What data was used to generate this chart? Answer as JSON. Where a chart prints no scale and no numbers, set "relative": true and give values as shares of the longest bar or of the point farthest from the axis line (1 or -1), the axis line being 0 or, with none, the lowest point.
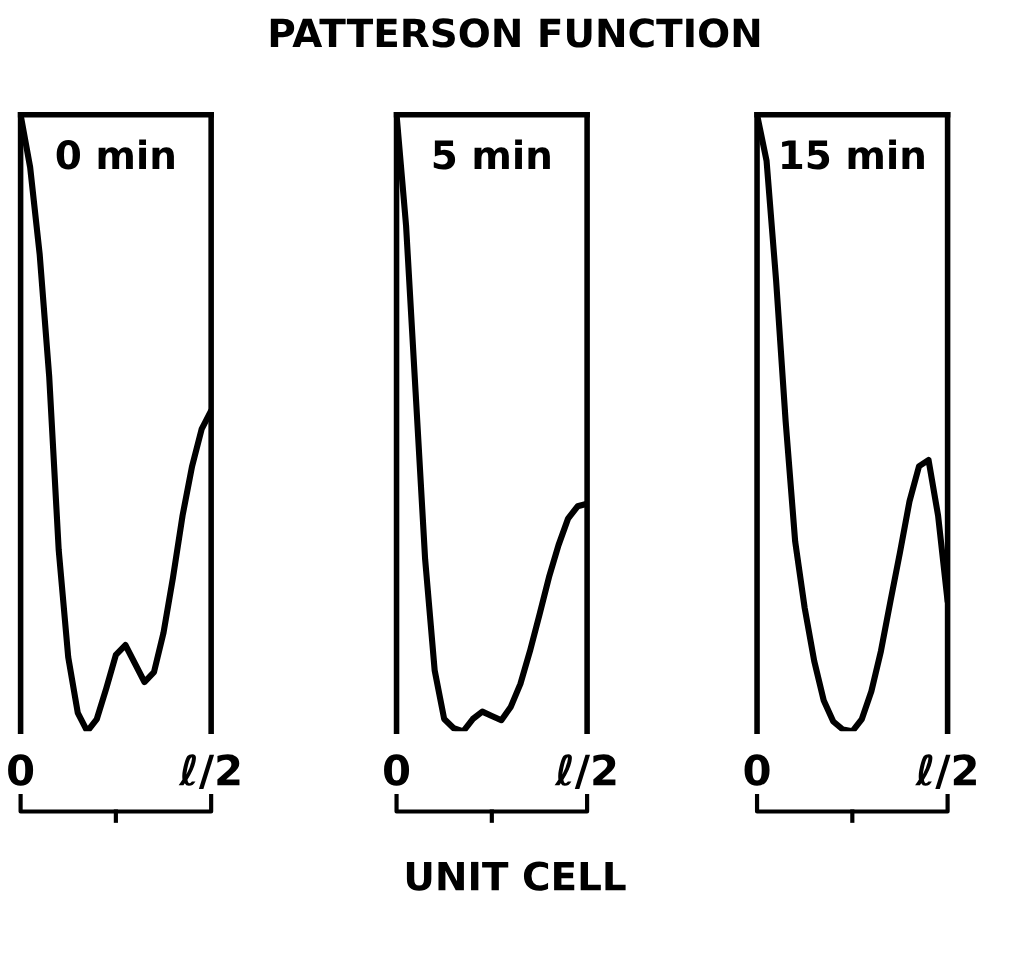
{
  "chart_data": [
    {
      "type": "line",
      "relative": true,
      "title": "0 min",
      "annotations": [
        "PATTERSON FUNCTION"
      ],
      "categories": [
        "0",
        null,
        null,
        null,
        null,
        null,
        null,
        null,
        null,
        null,
        null,
        null,
        null,
        null,
        null,
        null,
        null,
        null,
        null,
        null,
        "ℓ/2"
      ],
      "tick_labels": "x",
      "series": [
        {
          "color": "#000000",
          "values": [
            1,
            0.915,
            0.774,
            0.576,
            0.294,
            0.12,
            0.03,
            0,
            0.02,
            0.07,
            0.124,
            0.14,
            0.11,
            0.08,
            0.096,
            0.16,
            0.25,
            0.35,
            0.43,
            0.49,
            0.52
          ]
        }
      ]
    },
    {
      "type": "line",
      "relative": true,
      "title": "5 min",
      "xlabel": "UNIT CELL",
      "categories": [
        "0",
        null,
        null,
        null,
        null,
        null,
        null,
        null,
        null,
        null,
        null,
        null,
        null,
        null,
        null,
        null,
        null,
        null,
        null,
        null,
        "ℓ/2"
      ],
      "tick_labels": "x",
      "series": [
        {
          "color": "#000000",
          "values": [
            1,
            0.82,
            0.55,
            0.279,
            0.099,
            0.02,
            0.005,
            0,
            0.02,
            0.032,
            0.025,
            0.018,
            0.04,
            0.077,
            0.13,
            0.189,
            0.25,
            0.302,
            0.345,
            0.365,
            0.369
          ]
        }
      ]
    },
    {
      "type": "line",
      "relative": true,
      "title": "15 min",
      "categories": [
        "0",
        null,
        null,
        null,
        null,
        null,
        null,
        null,
        null,
        null,
        null,
        null,
        null,
        null,
        null,
        null,
        null,
        null,
        null,
        null,
        "ℓ/2"
      ],
      "tick_labels": "x",
      "series": [
        {
          "color": "#000000",
          "values": [
            1,
            0.925,
            0.731,
            0.503,
            0.308,
            0.2,
            0.114,
            0.05,
            0.016,
            0.003,
            0,
            0.02,
            0.065,
            0.13,
            0.211,
            0.29,
            0.373,
            0.43,
            0.44,
            0.35,
            0.211
          ]
        }
      ]
    }
  ]
}
